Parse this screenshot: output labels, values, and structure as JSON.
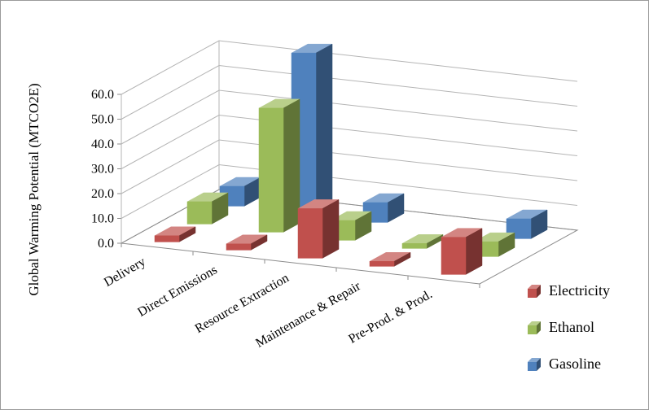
{
  "window": {
    "background": "#FFFFFF",
    "border_color": "#9A9A9A"
  },
  "chart_data": {
    "type": "bar",
    "projection": "3d",
    "title": "",
    "xlabel": "",
    "ylabel": "Global Warming Potential (MTCO2E)",
    "categories": [
      "Delivery",
      "Direct Emissions",
      "Resource Extraction",
      "Maintenance & Repair",
      "Pre-Prod. & Prod."
    ],
    "series": [
      {
        "name": "Electricity",
        "color": "#C0504D",
        "values": [
          2.5,
          2.5,
          20,
          2,
          15
        ]
      },
      {
        "name": "Ethanol",
        "color": "#9BBB59",
        "values": [
          9,
          50,
          8,
          2,
          6
        ]
      },
      {
        "name": "Gasoline",
        "color": "#4F81BD",
        "values": [
          8,
          65,
          8,
          0,
          8
        ]
      }
    ],
    "ylim": [
      0,
      60
    ],
    "y_tick_step": 10,
    "y_tick_labels": [
      "0.0",
      "10.0",
      "20.0",
      "30.0",
      "40.0",
      "50.0",
      "60.0"
    ],
    "grid": true,
    "legend_position": "right",
    "grid_color": "#B5B5B5",
    "axis_color": "#8C8C8C"
  }
}
